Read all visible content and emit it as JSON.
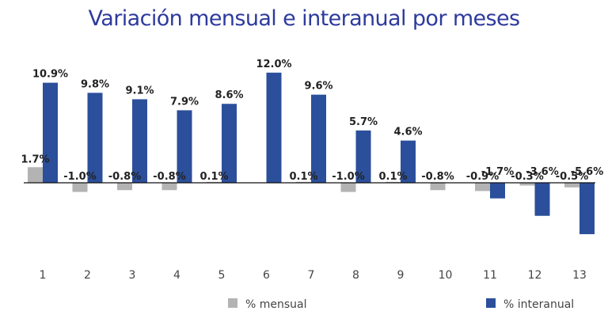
{
  "chart_data": {
    "type": "bar",
    "title": "Variación mensual e interanual por meses",
    "categories": [
      "1",
      "2",
      "3",
      "4",
      "5",
      "6",
      "7",
      "8",
      "9",
      "10",
      "11",
      "12",
      "13"
    ],
    "series": [
      {
        "name": "% mensual",
        "color": "#b3b3b3",
        "values": [
          1.7,
          -1.0,
          -0.8,
          -0.8,
          0.1,
          null,
          0.1,
          -1.0,
          0.1,
          -0.8,
          -0.9,
          -0.3,
          -0.5
        ],
        "labels": [
          "1.7%",
          "-1.0%",
          "-0.8%",
          "-0.8%",
          "0.1%",
          "",
          "0.1%",
          "-1.0%",
          "0.1%",
          "-0.8%",
          "-0.9%",
          "-0.3%",
          "-0.5%"
        ]
      },
      {
        "name": "% interanual",
        "color": "#2b4f9b",
        "values": [
          10.9,
          9.8,
          9.1,
          7.9,
          8.6,
          12.0,
          9.6,
          5.7,
          4.6,
          null,
          -1.7,
          -3.6,
          -5.6
        ],
        "labels": [
          "10.9%",
          "9.8%",
          "9.1%",
          "7.9%",
          "8.6%",
          "12.0%",
          "9.6%",
          "5.7%",
          "4.6%",
          "",
          "-1.7%",
          "-3.6%",
          "-5.6%"
        ]
      }
    ],
    "ylim": [
      -8.0,
      12.0
    ],
    "grid": false,
    "legend_position": "bottom"
  }
}
